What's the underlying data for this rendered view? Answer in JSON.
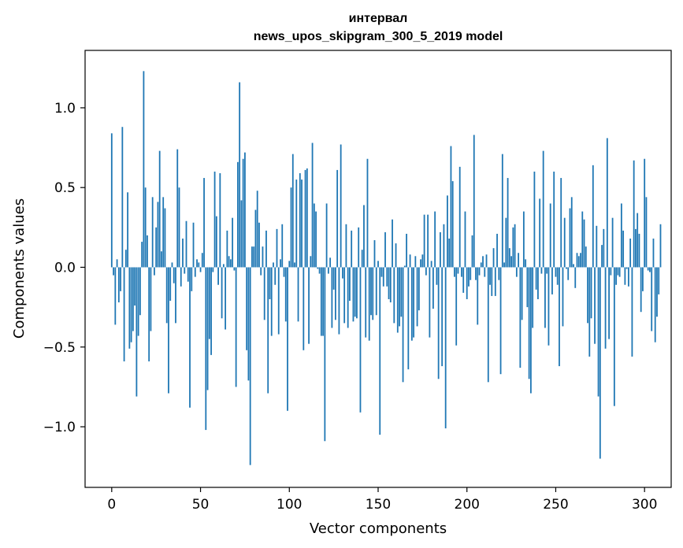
{
  "chart_data": {
    "type": "bar",
    "title_line1": "интервал",
    "title_line2": "news_upos_skipgram_300_5_2019 model",
    "xlabel": "Vector components",
    "ylabel": "Components values",
    "xlim": [
      -15,
      315
    ],
    "ylim": [
      -1.38,
      1.36
    ],
    "xticks": [
      0,
      50,
      100,
      150,
      200,
      250,
      300
    ],
    "xtick_labels": [
      "0",
      "50",
      "100",
      "150",
      "200",
      "250",
      "300"
    ],
    "yticks": [
      -1.0,
      -0.5,
      0.0,
      0.5,
      1.0
    ],
    "ytick_labels": [
      "−1.0",
      "−0.5",
      "0.0",
      "0.5",
      "1.0"
    ],
    "bar_color": "#1f77b4",
    "grid": false,
    "values": [
      0.84,
      -0.05,
      -0.36,
      0.05,
      -0.22,
      -0.15,
      0.88,
      -0.59,
      0.11,
      0.47,
      -0.51,
      -0.47,
      -0.4,
      -0.24,
      -0.81,
      -0.43,
      -0.3,
      0.16,
      1.23,
      0.5,
      0.2,
      -0.59,
      -0.4,
      0.44,
      -0.05,
      0.25,
      0.41,
      0.73,
      0.1,
      0.44,
      0.37,
      -0.35,
      -0.79,
      -0.21,
      0.03,
      -0.1,
      -0.35,
      0.74,
      0.5,
      -0.12,
      0.18,
      -0.04,
      0.29,
      -0.09,
      -0.88,
      -0.15,
      0.28,
      -0.06,
      0.05,
      0.03,
      -0.03,
      0.09,
      0.56,
      -1.02,
      -0.77,
      -0.45,
      -0.55,
      -0.03,
      0.6,
      0.32,
      -0.11,
      0.59,
      -0.32,
      0.02,
      -0.39,
      0.23,
      0.07,
      0.05,
      0.31,
      -0.02,
      -0.75,
      0.66,
      1.16,
      0.42,
      0.68,
      0.72,
      -0.52,
      -0.71,
      -1.24,
      0.13,
      0.13,
      0.36,
      0.48,
      0.28,
      -0.05,
      0.13,
      -0.33,
      0.23,
      -0.79,
      -0.2,
      -0.43,
      0.03,
      -0.11,
      0.24,
      -0.42,
      0.05,
      0.27,
      -0.06,
      -0.34,
      -0.9,
      0.04,
      0.5,
      0.71,
      0.03,
      0.55,
      -0.34,
      0.59,
      0.55,
      -0.52,
      0.61,
      0.62,
      -0.48,
      0.07,
      0.78,
      0.4,
      0.35,
      -0.01,
      -0.04,
      -0.43,
      -0.43,
      -1.09,
      0.4,
      -0.04,
      0.06,
      -0.38,
      -0.14,
      -0.33,
      0.61,
      -0.42,
      0.77,
      -0.07,
      -0.35,
      0.27,
      -0.38,
      -0.21,
      0.23,
      -0.34,
      -0.31,
      -0.32,
      0.25,
      -0.91,
      0.11,
      0.39,
      -0.44,
      0.68,
      -0.46,
      -0.3,
      -0.33,
      0.17,
      -0.3,
      0.04,
      -1.05,
      -0.06,
      -0.12,
      0.22,
      -0.12,
      -0.2,
      -0.22,
      0.3,
      -0.35,
      0.15,
      -0.41,
      -0.37,
      -0.31,
      -0.72,
      0.01,
      0.21,
      -0.64,
      0.08,
      -0.46,
      -0.44,
      0.07,
      -0.37,
      -0.27,
      0.05,
      0.08,
      0.33,
      -0.05,
      0.33,
      -0.44,
      0.04,
      -0.26,
      0.35,
      -0.11,
      -0.7,
      0.22,
      -0.62,
      0.27,
      -1.01,
      0.45,
      0.18,
      0.76,
      0.54,
      -0.06,
      -0.49,
      -0.04,
      0.63,
      -0.06,
      -0.16,
      0.35,
      -0.2,
      -0.12,
      -0.08,
      0.2,
      0.83,
      -0.08,
      -0.36,
      -0.05,
      0.03,
      0.07,
      -0.06,
      0.08,
      -0.72,
      -0.11,
      -0.18,
      0.12,
      -0.18,
      0.21,
      -0.08,
      -0.67,
      0.71,
      0.03,
      0.31,
      0.56,
      0.12,
      0.07,
      0.25,
      0.27,
      -0.06,
      0.09,
      -0.63,
      -0.33,
      0.35,
      0.05,
      -0.25,
      -0.7,
      -0.79,
      -0.38,
      0.6,
      -0.14,
      -0.2,
      0.43,
      -0.04,
      0.73,
      -0.38,
      -0.04,
      -0.49,
      0.4,
      -0.17,
      0.6,
      -0.06,
      -0.11,
      -0.62,
      0.56,
      -0.37,
      0.31,
      -0.01,
      -0.08,
      0.37,
      0.44,
      0.02,
      -0.13,
      0.09,
      0.07,
      0.09,
      0.35,
      0.3,
      0.13,
      -0.35,
      -0.56,
      -0.32,
      0.64,
      -0.48,
      0.26,
      -0.81,
      -1.2,
      0.14,
      0.24,
      -0.51,
      0.81,
      -0.45,
      -0.05,
      0.31,
      -0.87,
      -0.11,
      -0.05,
      -0.06,
      0.4,
      0.23,
      -0.11,
      -0.01,
      -0.12,
      0.18,
      -0.56,
      0.67,
      0.24,
      0.34,
      0.21,
      -0.28,
      -0.15,
      0.68,
      0.44,
      -0.02,
      -0.03,
      -0.4,
      0.18,
      -0.47,
      -0.31,
      -0.17,
      0.27
    ]
  }
}
